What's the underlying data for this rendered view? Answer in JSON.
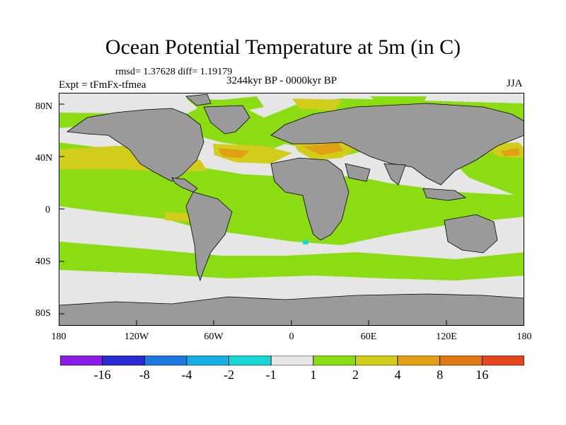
{
  "title": "Ocean Potential Temperature at 5m (in C)",
  "stats_label": "rmsd= 1.37628 diff= 1.19179",
  "experiment_label": "Expt = tFmFx-tfmea",
  "period_label": "3244kyr BP - 0000kyr BP",
  "season_label": "JJA",
  "lat_labels": [
    "80N",
    "40N",
    "0",
    "40S",
    "80S"
  ],
  "lon_labels": [
    "180",
    "120W",
    "60W",
    "0",
    "60E",
    "120E",
    "180"
  ],
  "colorbar": {
    "colors": [
      "#8a1ee6",
      "#2b2bd6",
      "#1f78e0",
      "#17b0e6",
      "#19d6d6",
      "#e6e6e6",
      "#8cdc14",
      "#d2cc1a",
      "#e0a214",
      "#e07814",
      "#e6461e"
    ],
    "labels": [
      "-16",
      "-8",
      "-4",
      "-2",
      "-1",
      "1",
      "2",
      "4",
      "8",
      "16"
    ]
  },
  "map_colors": {
    "land": "#9a9a9a",
    "near_zero": "#e6e6e6",
    "green": "#8cdc14",
    "yellow": "#d2cc1a",
    "orange": "#e0a214",
    "cyan": "#19d6d6"
  }
}
